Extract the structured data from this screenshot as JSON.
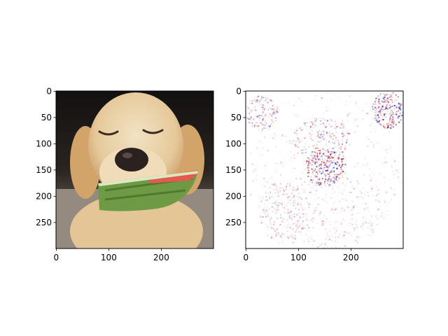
{
  "figure": {
    "background": "#ffffff"
  },
  "chart_data": [
    {
      "type": "image",
      "panel": "left",
      "content": "photo",
      "title": "",
      "xlabel": "",
      "ylabel": "",
      "xlim": [
        0,
        299
      ],
      "ylim": [
        299,
        0
      ],
      "xticks": [
        0,
        100,
        200
      ],
      "yticks": [
        0,
        50,
        100,
        150,
        200,
        250
      ],
      "colors": {
        "background": "#1a1614",
        "fur": "#e6c99a",
        "fur_light": "#f2e2c4",
        "fur_shadow": "#c79d68",
        "nose": "#2b2220",
        "rind": "#6f9a45",
        "flesh": "#e35a4e",
        "ground": "#8d8378"
      }
    },
    {
      "type": "heatmap",
      "panel": "right",
      "content": "saliency map",
      "colormap": "bwr",
      "title": "",
      "xlabel": "",
      "ylabel": "",
      "xlim": [
        0,
        299
      ],
      "ylim": [
        299,
        0
      ],
      "xticks": [
        0,
        100,
        200
      ],
      "yticks": [
        0,
        50,
        100,
        150,
        200,
        250
      ],
      "colors": {
        "positive": "#d7191c",
        "negative": "#2c3bd6",
        "zero": "#ffffff"
      }
    }
  ]
}
